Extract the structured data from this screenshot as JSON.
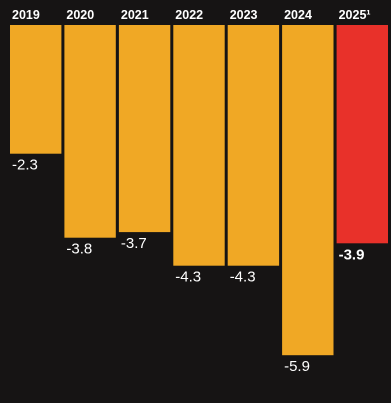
{
  "chart_data": {
    "type": "bar",
    "title": "",
    "xlabel": "",
    "ylabel": "",
    "categories": [
      "2019",
      "2020",
      "2021",
      "2022",
      "2023",
      "2024",
      "2025¹"
    ],
    "values": [
      -2.3,
      -3.8,
      -3.7,
      -4.3,
      -4.3,
      -5.9,
      -3.9
    ],
    "value_labels": [
      "-2.3",
      "-3.8",
      "-3.7",
      "-4.3",
      "-4.3",
      "-5.9",
      "-3.9"
    ],
    "ylim": [
      -6.2,
      0
    ],
    "grid": false,
    "legend": "none",
    "colors": {
      "bar": "#f0a825",
      "highlight": "#e8312a",
      "background": "#161414",
      "text": "#ffffff"
    },
    "highlight_index": 6
  }
}
